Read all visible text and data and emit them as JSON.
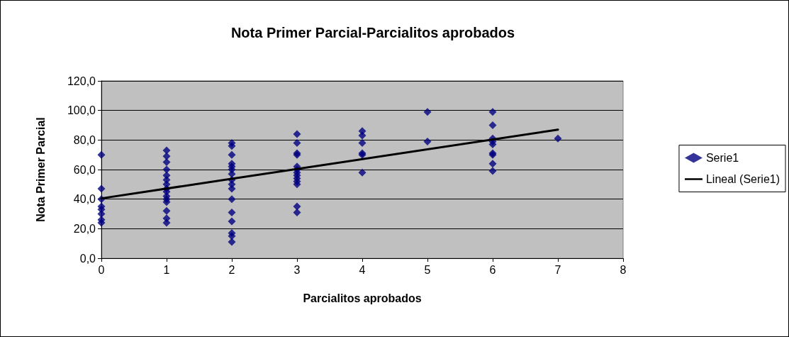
{
  "chart_data": {
    "type": "scatter",
    "title": "Nota Primer Parcial-Parcialitos aprobados",
    "xlabel": "Parcialitos aprobados",
    "ylabel": "Nota Primer Parcial",
    "series": [
      {
        "name": "Serie1",
        "color": "#000080",
        "marker": "diamond",
        "x": [
          0,
          0,
          0,
          0,
          0,
          0,
          0,
          0,
          1,
          1,
          1,
          1,
          1,
          1,
          1,
          1,
          1,
          1,
          1,
          1,
          1,
          1,
          1,
          2,
          2,
          2,
          2,
          2,
          2,
          2,
          2,
          2,
          2,
          2,
          2,
          2,
          2,
          2,
          2,
          3,
          3,
          3,
          3,
          3,
          3,
          3,
          3,
          3,
          3,
          3,
          3,
          3,
          4,
          4,
          4,
          4,
          4,
          4,
          5,
          5,
          6,
          6,
          6,
          6,
          6,
          6,
          6,
          6,
          6,
          7
        ],
        "values": [
          70,
          47,
          40,
          35,
          33,
          30,
          26,
          24,
          73,
          69,
          65,
          60,
          56,
          53,
          50,
          47,
          45,
          42,
          40,
          38,
          32,
          27,
          24,
          78,
          76,
          70,
          64,
          62,
          60,
          57,
          53,
          50,
          47,
          40,
          31,
          25,
          17,
          15,
          11,
          84,
          78,
          71,
          70,
          62,
          60,
          58,
          56,
          54,
          52,
          50,
          35,
          31,
          86,
          83,
          78,
          71,
          70,
          58,
          99,
          79,
          99,
          90,
          81,
          79,
          77,
          71,
          70,
          64,
          59,
          81
        ]
      },
      {
        "name": "Lineal (Serie1)",
        "color": "#000000",
        "type": "line",
        "marker": "none",
        "line_style": "solid",
        "x": [
          0,
          7
        ],
        "values": [
          40.5,
          87
        ]
      }
    ],
    "xlim": [
      0,
      8
    ],
    "xticks": [
      0,
      1,
      2,
      3,
      4,
      5,
      6,
      7,
      8
    ],
    "ylim": [
      0,
      120
    ],
    "yticks": [
      {
        "value": 0,
        "label": "0,0"
      },
      {
        "value": 20,
        "label": "20,0"
      },
      {
        "value": 40,
        "label": "40,0"
      },
      {
        "value": 60,
        "label": "60,0"
      },
      {
        "value": 80,
        "label": "80,0"
      },
      {
        "value": 100,
        "label": "100,0"
      },
      {
        "value": 120,
        "label": "120,0"
      }
    ],
    "grid": "y",
    "legend": "right"
  }
}
